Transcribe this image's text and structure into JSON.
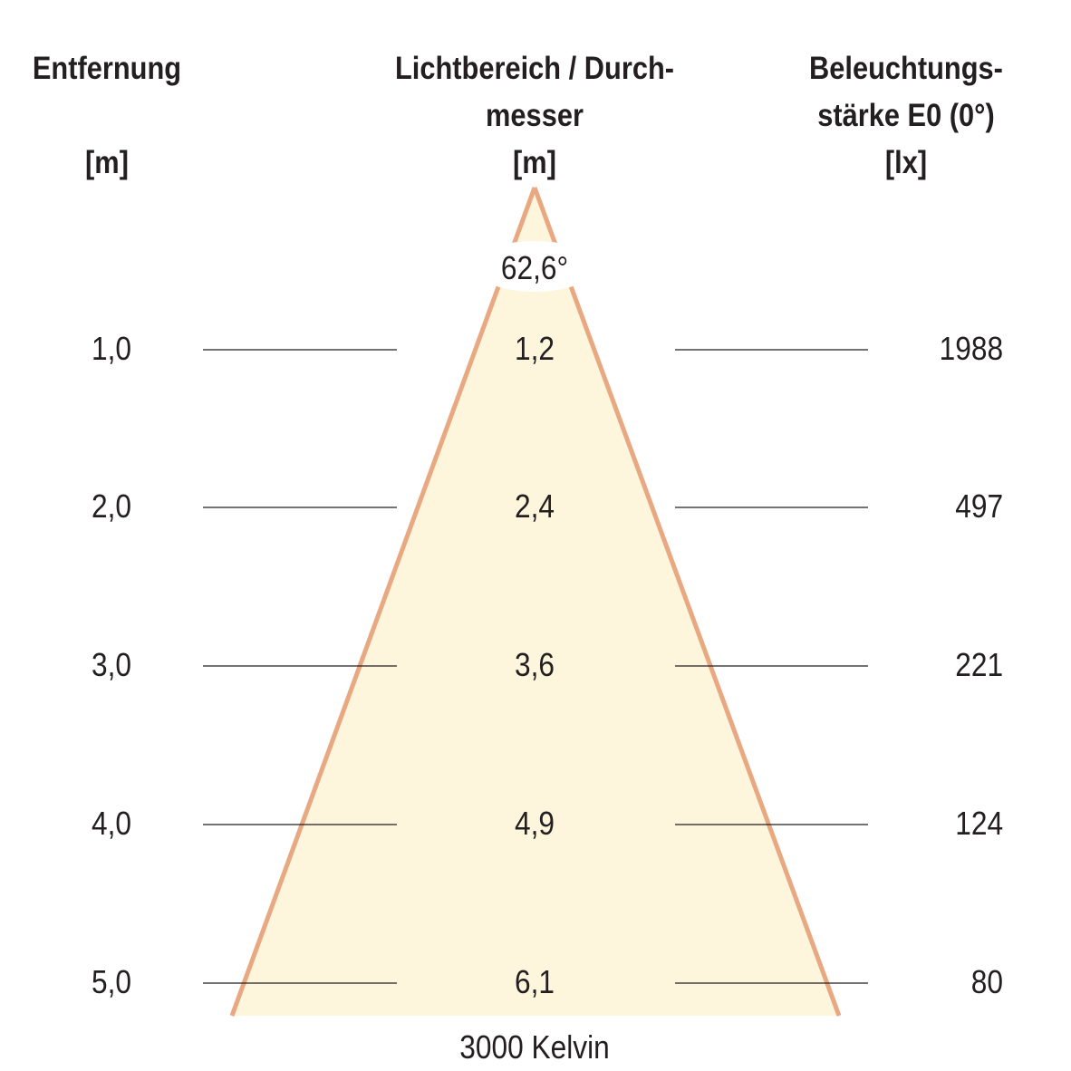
{
  "headers": {
    "distance": {
      "line1": "Entfernung",
      "unit": "[m]"
    },
    "diameter": {
      "line1": "Lichtbereich / Durch-",
      "line2": "messer",
      "unit": "[m]"
    },
    "illuminance": {
      "line1": "Beleuchtungs-",
      "line2": "stärke E0 (0°)",
      "unit": "[lx]"
    }
  },
  "beam_angle": "62,6°",
  "color_temperature": "3000 Kelvin",
  "rows": [
    {
      "distance": "1,0",
      "diameter": "1,2",
      "illuminance": "1988"
    },
    {
      "distance": "2,0",
      "diameter": "2,4",
      "illuminance": "497"
    },
    {
      "distance": "3,0",
      "diameter": "3,6",
      "illuminance": "221"
    },
    {
      "distance": "4,0",
      "diameter": "4,9",
      "illuminance": "124"
    },
    {
      "distance": "5,0",
      "diameter": "6,1",
      "illuminance": "80"
    }
  ],
  "colors": {
    "cone_fill": "#fdf5dc",
    "cone_edge": "#e8a882",
    "line": "#231f20"
  }
}
